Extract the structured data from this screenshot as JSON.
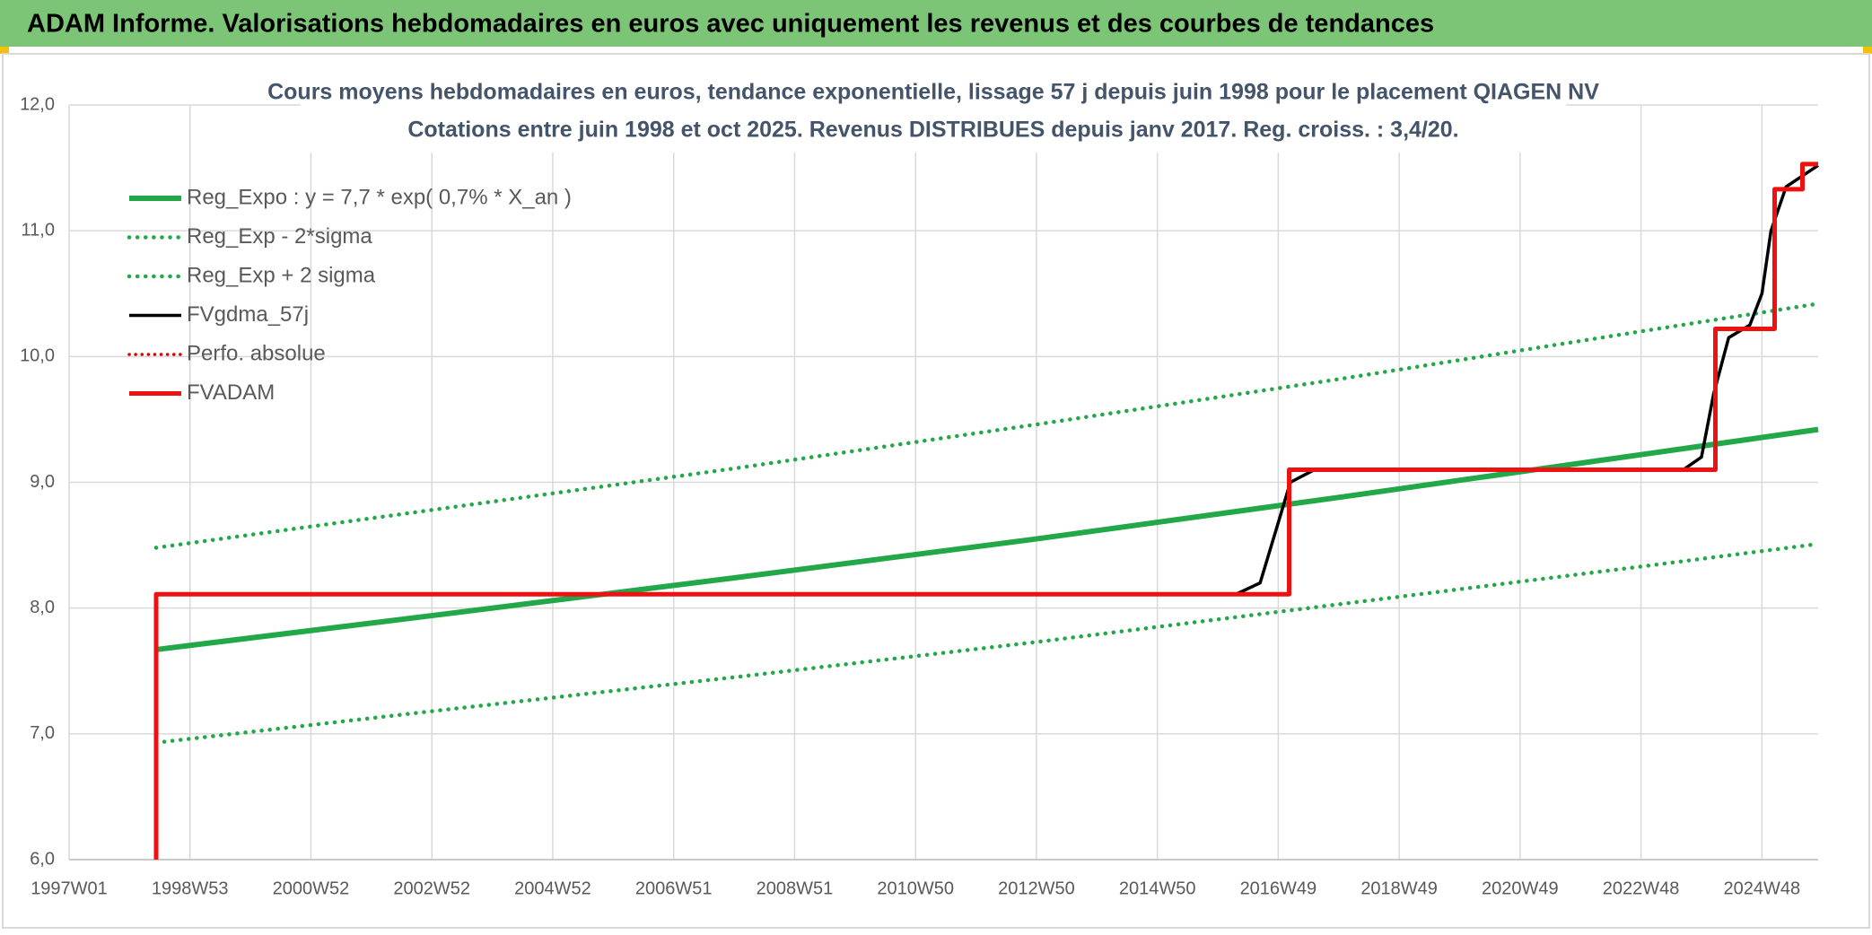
{
  "header": {
    "title": "ADAM Informe. Valorisations hebdomadaires en euros avec uniquement les revenus et des courbes de tendances"
  },
  "chart_data": {
    "type": "line",
    "title": "Cours moyens hebdomadaires en euros, tendance exponentielle, lissage 57 j depuis juin 1998 pour le placement QIAGEN NV",
    "subtitle": "Cotations entre juin 1998 et oct 2025. Revenus DISTRIBUES depuis janv 2017. Reg. croiss. : 3,4/20.",
    "xlim": [
      1997,
      2025.93
    ],
    "ylim": [
      6,
      12
    ],
    "grid": true,
    "legend": "upper left",
    "xticks": [
      {
        "value": 1997,
        "label": "1997W01"
      },
      {
        "value": 1999,
        "label": "1998W53"
      },
      {
        "value": 2001,
        "label": "2000W52"
      },
      {
        "value": 2003,
        "label": "2002W52"
      },
      {
        "value": 2005,
        "label": "2004W52"
      },
      {
        "value": 2007,
        "label": "2006W51"
      },
      {
        "value": 2009,
        "label": "2008W51"
      },
      {
        "value": 2011,
        "label": "2010W50"
      },
      {
        "value": 2013,
        "label": "2012W50"
      },
      {
        "value": 2015,
        "label": "2014W50"
      },
      {
        "value": 2017,
        "label": "2016W49"
      },
      {
        "value": 2019,
        "label": "2018W49"
      },
      {
        "value": 2021,
        "label": "2020W49"
      },
      {
        "value": 2023,
        "label": "2022W48"
      },
      {
        "value": 2025,
        "label": "2024W48"
      }
    ],
    "yticks": [
      {
        "value": 6,
        "label": "6,0"
      },
      {
        "value": 7,
        "label": "7,0"
      },
      {
        "value": 8,
        "label": "8,0"
      },
      {
        "value": 9,
        "label": "9,0"
      },
      {
        "value": 10,
        "label": "10,0"
      },
      {
        "value": 11,
        "label": "11,0"
      },
      {
        "value": 12,
        "label": "12,0"
      }
    ],
    "series": [
      {
        "name": "Reg_Expo : y = 7,7 * exp( 0,7% *  X_an )",
        "color": "#22a849",
        "style": "solid",
        "width": 6,
        "x": [
          1998.44,
          2003,
          2008,
          2013,
          2018,
          2023,
          2025.93
        ],
        "values": [
          7.67,
          7.94,
          8.24,
          8.55,
          8.88,
          9.22,
          9.42
        ]
      },
      {
        "name": "Reg_Exp - 2*sigma",
        "color": "#22a849",
        "style": "dotted",
        "width": 4.5,
        "x": [
          1998.44,
          2003,
          2008,
          2013,
          2018,
          2023,
          2025.93
        ],
        "values": [
          6.93,
          7.18,
          7.45,
          7.73,
          8.03,
          8.33,
          8.51
        ]
      },
      {
        "name": "Reg_Exp + 2 sigma",
        "color": "#22a849",
        "style": "dotted",
        "width": 4.5,
        "x": [
          1998.44,
          2003,
          2008,
          2013,
          2018,
          2023,
          2025.93
        ],
        "values": [
          8.48,
          8.78,
          9.11,
          9.46,
          9.82,
          10.2,
          10.42
        ]
      },
      {
        "name": "FVgdma_57j",
        "color": "#000000",
        "style": "solid",
        "width": 3.5,
        "x": [
          1998.44,
          2016.3,
          2016.7,
          2016.95,
          2017.2,
          2017.6,
          2023.7,
          2024.0,
          2024.2,
          2024.45,
          2024.8,
          2025.0,
          2025.15,
          2025.4,
          2025.93
        ],
        "values": [
          8.11,
          8.11,
          8.2,
          8.6,
          9.0,
          9.1,
          9.1,
          9.2,
          9.7,
          10.15,
          10.25,
          10.5,
          11.0,
          11.35,
          11.52
        ]
      },
      {
        "name": "Perfo. absolue",
        "color": "#e00000",
        "style": "dotted",
        "width": 3.5,
        "x": [],
        "values": []
      },
      {
        "name": "FVADAM",
        "color": "#ee1111",
        "style": "solid",
        "width": 5,
        "x": [
          1998.44,
          1998.44,
          2017.18,
          2017.18,
          2024.23,
          2024.23,
          2025.21,
          2025.21,
          2025.67,
          2025.67,
          2025.93
        ],
        "values": [
          6.0,
          8.11,
          8.11,
          9.1,
          9.1,
          10.22,
          10.22,
          11.33,
          11.33,
          11.53,
          11.53
        ]
      }
    ]
  }
}
